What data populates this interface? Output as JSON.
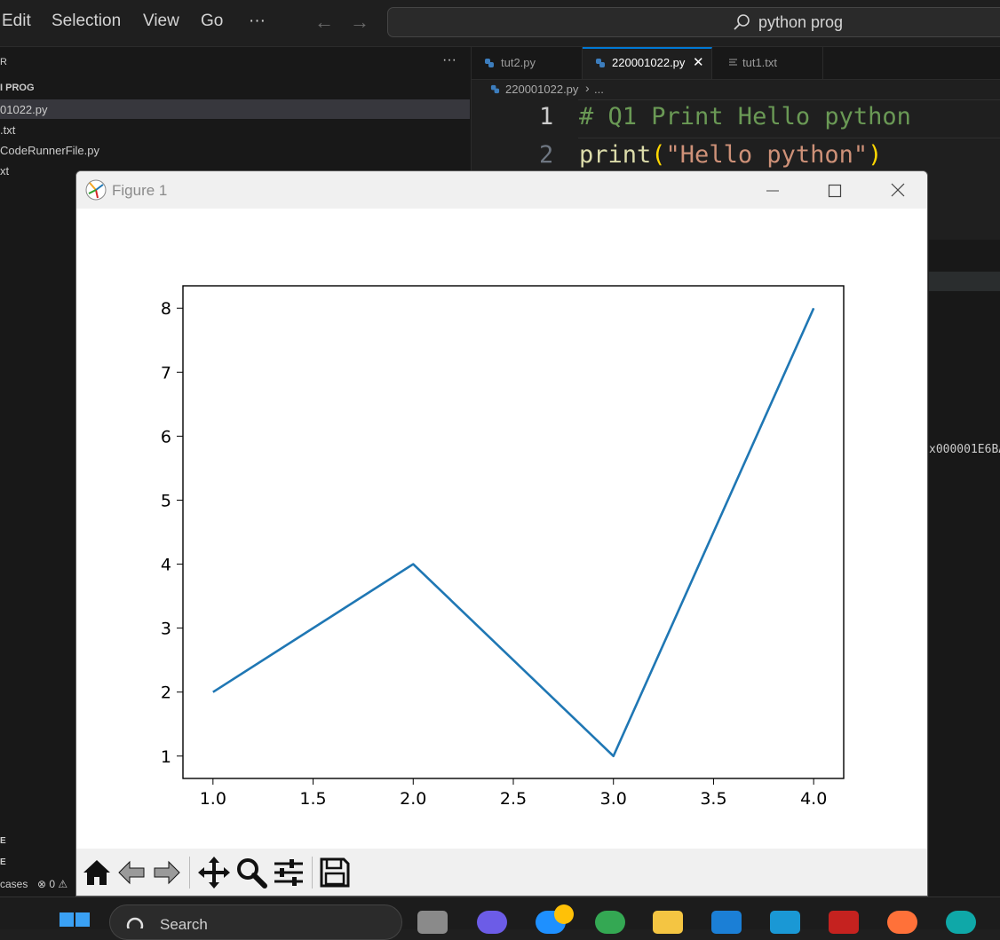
{
  "menubar": {
    "items": [
      "Edit",
      "Selection",
      "View",
      "Go",
      "···"
    ],
    "back_arrow": "←",
    "forward_arrow": "→",
    "search_text": "python prog"
  },
  "sidebar": {
    "header": "R",
    "more": "···",
    "folder": "I PROG",
    "files": [
      "01022.py",
      ".txt",
      "CodeRunnerFile.py",
      "xt"
    ],
    "bottom_labels": [
      "E",
      "E"
    ],
    "status_text": "cases",
    "status_counts": "⊗ 0 ⚠"
  },
  "editor": {
    "tabs": [
      {
        "label": "tut2.py",
        "icon": "python-icon"
      },
      {
        "label": "220001022.py",
        "icon": "python-icon",
        "active": true
      },
      {
        "label": "tut1.txt",
        "icon": "text-file-icon"
      }
    ],
    "close_glyph": "✕",
    "breadcrumb": [
      "220001022.py",
      "..."
    ],
    "lines": [
      {
        "number": "1",
        "code": "# Q1 Print Hello python"
      },
      {
        "number": "2",
        "func": "print",
        "open": "(",
        "str": "\"Hello python\"",
        "close": ")"
      }
    ],
    "output_fragment": "x000001E6BA"
  },
  "figure": {
    "title": "Figure 1",
    "minimize": "—",
    "close": "✕",
    "toolbar": [
      "home-icon",
      "back-icon",
      "forward-icon",
      "pan-icon",
      "zoom-icon",
      "configure-icon",
      "save-icon"
    ]
  },
  "chart_data": {
    "type": "line",
    "x": [
      1.0,
      2.0,
      3.0,
      4.0
    ],
    "series": [
      {
        "values": [
          2,
          4,
          1,
          8
        ]
      }
    ],
    "xlim": [
      0.85,
      4.15
    ],
    "ylim": [
      0.65,
      8.35
    ],
    "xticks": [
      "1.0",
      "1.5",
      "2.0",
      "2.5",
      "3.0",
      "3.5",
      "4.0"
    ],
    "yticks": [
      "1",
      "2",
      "3",
      "4",
      "5",
      "6",
      "7",
      "8"
    ],
    "color": "#1f77b4",
    "grid": false
  },
  "taskbar": {
    "search_placeholder": "Search"
  }
}
